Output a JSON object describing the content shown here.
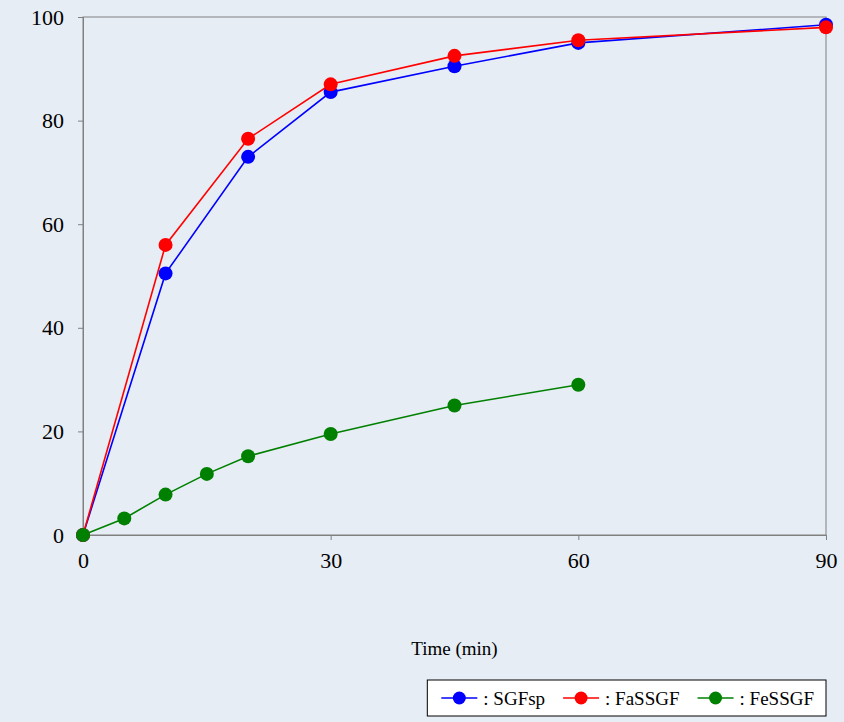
{
  "chart_data": {
    "type": "line",
    "x_label": "Time (min)",
    "xlim": [
      0,
      90
    ],
    "xticks": [
      0,
      30,
      60,
      90
    ],
    "ylim": [
      0,
      100
    ],
    "yticks": [
      0,
      20,
      40,
      60,
      80,
      100
    ],
    "grid": false,
    "legend": "bottom",
    "series": [
      {
        "name": ": SGFsp",
        "color": "#0000ff",
        "marker": "circle",
        "line_style": "solid",
        "x": [
          0,
          10,
          20,
          30,
          45,
          60,
          90
        ],
        "values": [
          0,
          50.5,
          73,
          85.5,
          90.5,
          95,
          98.5
        ]
      },
      {
        "name": ": FaSSGF",
        "color": "#ff0000",
        "marker": "circle",
        "line_style": "solid",
        "x": [
          0,
          10,
          20,
          30,
          45,
          60,
          90
        ],
        "values": [
          0,
          56,
          76.5,
          87,
          92.5,
          95.5,
          98
        ]
      },
      {
        "name": ": FeSSGF",
        "color": "#008000",
        "marker": "circle",
        "line_style": "solid",
        "x": [
          0,
          5,
          10,
          15,
          20,
          30,
          45,
          60
        ],
        "values": [
          0,
          3.2,
          7.8,
          11.8,
          15.2,
          19.5,
          25,
          29
        ]
      }
    ]
  }
}
